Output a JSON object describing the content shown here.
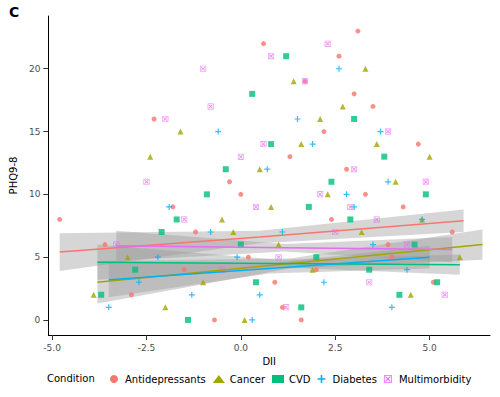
{
  "chart_data": {
    "type": "scatter",
    "title": "C",
    "xlabel": "DII",
    "ylabel": "PHQ9-8",
    "legend_title": "Condition",
    "legend": "bottom",
    "grid": false,
    "xlim": [
      -5.1,
      6.6
    ],
    "ylim": [
      -1.2,
      24.2
    ],
    "xticks": [
      {
        "value": -5,
        "label": "-5.0"
      },
      {
        "value": -2.5,
        "label": "-2.5"
      },
      {
        "value": 0,
        "label": "0.0"
      },
      {
        "value": 2.5,
        "label": "2.5"
      },
      {
        "value": 5,
        "label": "5.0"
      }
    ],
    "yticks": [
      0,
      5,
      10,
      15,
      20
    ],
    "series": [
      {
        "name": "Antidepressants",
        "color": "#F8766D",
        "marker": "circle",
        "x": [
          -4.8,
          -3.6,
          -2.9,
          -2.3,
          -1.8,
          -1.2,
          -0.7,
          -0.3,
          0.2,
          0.6,
          0.9,
          1.3,
          1.7,
          2.0,
          2.4,
          2.8,
          3.1,
          3.5,
          3.9,
          4.3,
          4.7,
          5.1,
          5.6,
          -1.5,
          0.0,
          1.1,
          2.2,
          3.0,
          3.3,
          4.0,
          1.6,
          2.6
        ],
        "values": [
          8,
          6,
          2,
          16,
          9,
          7,
          0,
          11,
          5,
          22,
          3,
          13,
          19,
          4,
          8,
          12,
          23,
          17,
          6,
          9,
          14,
          3,
          7,
          4,
          10,
          1,
          15,
          18,
          10,
          5,
          0,
          21
        ],
        "fit_x": [
          -4.8,
          0.5,
          5.9
        ],
        "fit_values": [
          5.4,
          6.6,
          7.9
        ],
        "fit_lower": [
          3.9,
          6.1,
          7.0
        ],
        "fit_upper": [
          6.9,
          7.1,
          8.8
        ]
      },
      {
        "name": "Cancer",
        "color": "#A3A500",
        "marker": "triangle",
        "x": [
          -3.9,
          -3.0,
          -2.4,
          -1.6,
          -1.0,
          -0.5,
          0.1,
          0.5,
          1.0,
          1.4,
          1.9,
          2.3,
          2.7,
          3.2,
          3.6,
          4.1,
          4.5,
          5.0,
          5.8,
          -2.0,
          0.8,
          2.1,
          3.3,
          4.8,
          1.6,
          -0.2
        ],
        "values": [
          2,
          5,
          13,
          15,
          3,
          8,
          0,
          12,
          6,
          19,
          4,
          10,
          17,
          7,
          14,
          11,
          2,
          13,
          5,
          1,
          9,
          16,
          20,
          8,
          14,
          7
        ],
        "fit_x": [
          -3.8,
          1.3,
          6.4
        ],
        "fit_values": [
          3.0,
          4.5,
          6.0
        ],
        "fit_lower": [
          1.3,
          4.1,
          4.8
        ],
        "fit_upper": [
          4.7,
          4.9,
          7.2
        ]
      },
      {
        "name": "CVD",
        "color": "#00BF7D",
        "marker": "square",
        "x": [
          -3.7,
          -2.8,
          -2.1,
          -1.4,
          -0.9,
          -0.4,
          0.0,
          0.4,
          0.8,
          1.2,
          1.6,
          2.0,
          2.4,
          2.9,
          3.4,
          3.8,
          4.2,
          4.6,
          5.2,
          -1.7,
          1.8,
          3.0,
          4.9,
          0.3
        ],
        "values": [
          2,
          4,
          7,
          0,
          10,
          12,
          6,
          3,
          14,
          21,
          1,
          5,
          11,
          8,
          4,
          13,
          2,
          6,
          3,
          8,
          9,
          16,
          10,
          18
        ],
        "fit_x": [
          -3.8,
          1.0,
          5.8
        ],
        "fit_values": [
          4.6,
          4.5,
          4.4
        ],
        "fit_lower": [
          3.2,
          4.2,
          3.6
        ],
        "fit_upper": [
          6.0,
          4.8,
          5.2
        ]
      },
      {
        "name": "Diabetes",
        "color": "#00B0F6",
        "marker": "plus",
        "x": [
          -3.5,
          -2.7,
          -1.9,
          -1.3,
          -0.6,
          -0.1,
          0.3,
          0.7,
          1.1,
          1.5,
          2.2,
          2.6,
          3.0,
          3.5,
          3.9,
          4.4,
          4.8,
          -2.2,
          0.5,
          1.9,
          2.8,
          4.0,
          -0.8,
          3.7
        ],
        "values": [
          1,
          3,
          9,
          2,
          15,
          5,
          0,
          12,
          7,
          16,
          3,
          20,
          9,
          6,
          11,
          4,
          8,
          5,
          2,
          14,
          10,
          1,
          7,
          15
        ],
        "fit_x": [
          -3.5,
          0.75,
          5.0
        ],
        "fit_values": [
          3.2,
          4.1,
          5.0
        ],
        "fit_lower": [
          1.8,
          3.7,
          4.1
        ],
        "fit_upper": [
          4.6,
          4.5,
          5.9
        ]
      },
      {
        "name": "Multimorbidity",
        "color": "#E76BF3",
        "marker": "boxed_cross",
        "x": [
          -3.3,
          -2.5,
          -2.0,
          -1.5,
          -1.0,
          -0.5,
          0.0,
          0.4,
          0.8,
          1.2,
          1.7,
          2.1,
          2.5,
          3.0,
          3.4,
          3.9,
          4.4,
          4.9,
          5.4,
          -0.8,
          1.0,
          2.3,
          3.6,
          0.6,
          2.9
        ],
        "values": [
          6,
          11,
          16,
          8,
          20,
          4,
          13,
          9,
          21,
          1,
          19,
          10,
          7,
          12,
          3,
          15,
          6,
          11,
          2,
          17,
          5,
          22,
          8,
          14,
          9
        ],
        "fit_x": [
          -3.3,
          1.15,
          5.6
        ],
        "fit_values": [
          5.9,
          5.75,
          5.6
        ],
        "fit_lower": [
          4.7,
          5.45,
          4.6
        ],
        "fit_upper": [
          7.1,
          6.05,
          6.6
        ]
      }
    ]
  }
}
